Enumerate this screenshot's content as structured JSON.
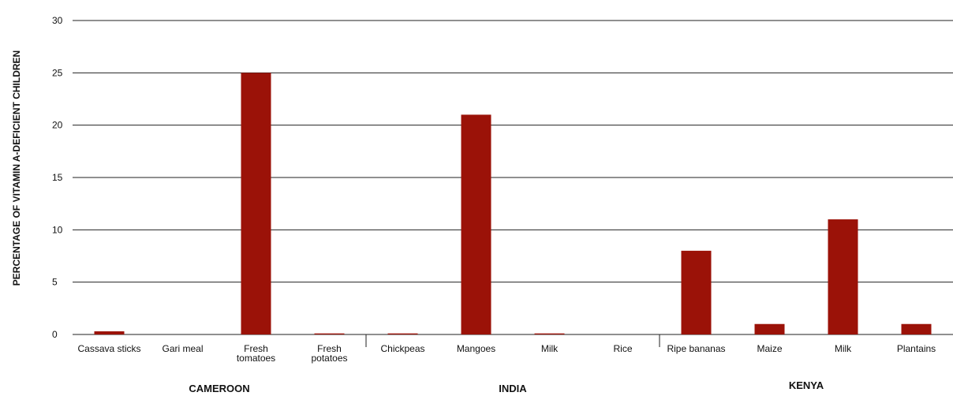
{
  "chart_data": {
    "type": "bar",
    "title": "",
    "xlabel": "",
    "ylabel": "PERCENTAGE OF VITAMIN A-DEFICIENT CHILDREN",
    "ylim": [
      0,
      30
    ],
    "yticks": [
      0,
      5,
      10,
      15,
      20,
      25,
      30
    ],
    "grid": true,
    "bar_color": "#9b1208",
    "groups": [
      {
        "name": "CAMEROON",
        "categories": [
          {
            "label": [
              "Cassava sticks"
            ],
            "value": 0.3
          },
          {
            "label": [
              "Gari meal"
            ],
            "value": 0
          },
          {
            "label": [
              "Fresh",
              "tomatoes"
            ],
            "value": 25
          },
          {
            "label": [
              "Fresh",
              "potatoes"
            ],
            "value": 0.1
          }
        ]
      },
      {
        "name": "INDIA",
        "categories": [
          {
            "label": [
              "Chickpeas"
            ],
            "value": 0.1
          },
          {
            "label": [
              "Mangoes"
            ],
            "value": 21
          },
          {
            "label": [
              "Milk"
            ],
            "value": 0.1
          },
          {
            "label": [
              "Rice"
            ],
            "value": 0
          }
        ]
      },
      {
        "name": "KENYA",
        "categories": [
          {
            "label": [
              "Ripe bananas"
            ],
            "value": 8
          },
          {
            "label": [
              "Maize"
            ],
            "value": 1
          },
          {
            "label": [
              "Milk"
            ],
            "value": 11
          },
          {
            "label": [
              "Plantains"
            ],
            "value": 1
          }
        ]
      }
    ]
  }
}
